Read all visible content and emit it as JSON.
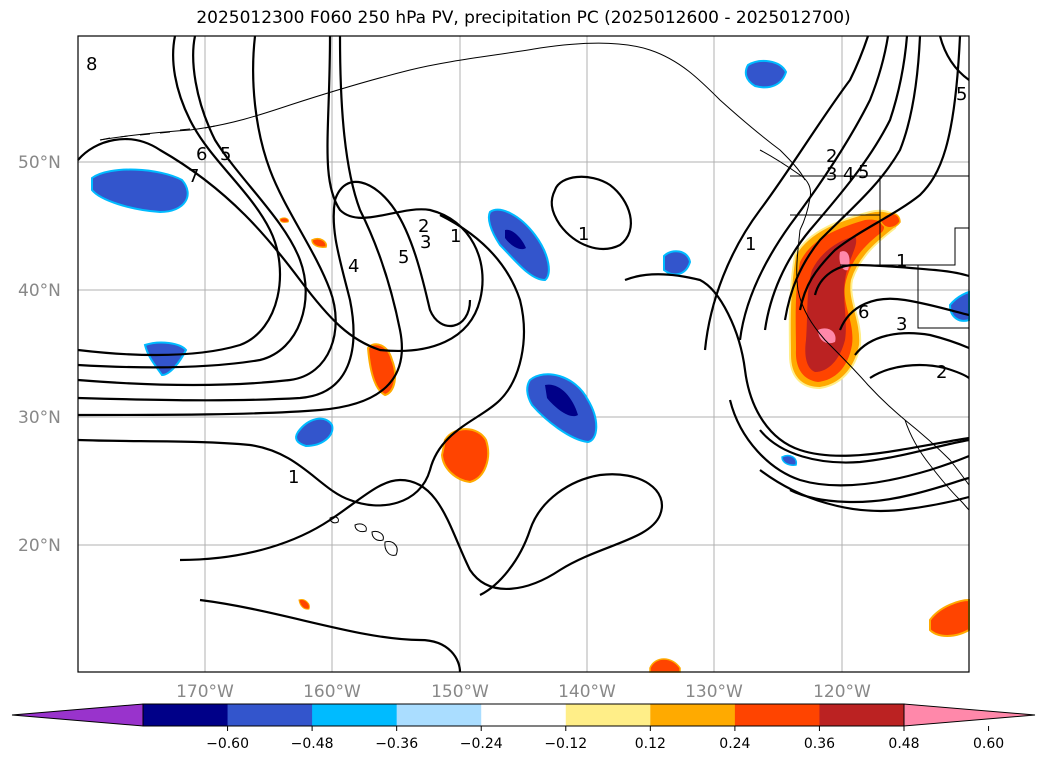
{
  "title": "2025012300 F060 250 hPa PV, precipitation PC (2025012600 - 2025012700)",
  "lat_labels": [
    "50°N",
    "40°N",
    "30°N",
    "20°N"
  ],
  "lon_labels": [
    "170°W",
    "160°W",
    "150°W",
    "140°W",
    "130°W",
    "120°W"
  ],
  "colorbar": {
    "ticks": [
      "−0.60",
      "−0.48",
      "−0.36",
      "−0.24",
      "−0.12",
      "0.12",
      "0.24",
      "0.36",
      "0.48",
      "0.60"
    ],
    "colors": [
      "#9933cc",
      "#000088",
      "#3355cc",
      "#00bbff",
      "#aaddff",
      "#ffffff",
      "#ffee88",
      "#ffaa00",
      "#ff4400",
      "#bb2222",
      "#ff88aa"
    ]
  },
  "contour_labels": [
    "8",
    "6",
    "5",
    "7",
    "4",
    "5",
    "2",
    "3",
    "1",
    "1",
    "1",
    "2",
    "3",
    "4",
    "5",
    "1",
    "6",
    "3",
    "2",
    "5",
    "1"
  ],
  "colors": {
    "neg_strong": "#000088",
    "neg_mid": "#3355cc",
    "neg_light": "#00bbff",
    "pos_light": "#ffee88",
    "pos_mid": "#ffaa00",
    "pos_strong": "#ff4400",
    "pos_dark": "#bb2222",
    "pos_max": "#ff88aa"
  }
}
